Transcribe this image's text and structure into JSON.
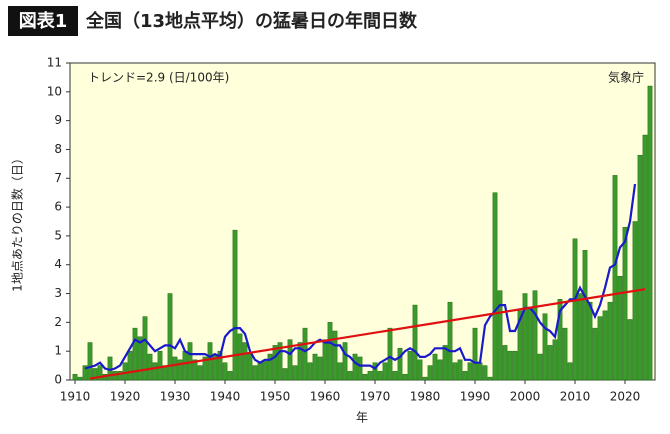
{
  "chart_data": {
    "type": "bar",
    "badge": "図表1",
    "title": "全国（13地点平均）の猛暑日の年間日数",
    "ylabel": "1地点あたりの日数（日）",
    "xlabel": "年",
    "annotations": [
      "トレンド=2.9 (日/100年)",
      "気象庁"
    ],
    "x": [
      1910,
      1911,
      1912,
      1913,
      1914,
      1915,
      1916,
      1917,
      1918,
      1919,
      1920,
      1921,
      1922,
      1923,
      1924,
      1925,
      1926,
      1927,
      1928,
      1929,
      1930,
      1931,
      1932,
      1933,
      1934,
      1935,
      1936,
      1937,
      1938,
      1939,
      1940,
      1941,
      1942,
      1943,
      1944,
      1945,
      1946,
      1947,
      1948,
      1949,
      1950,
      1951,
      1952,
      1953,
      1954,
      1955,
      1956,
      1957,
      1958,
      1959,
      1960,
      1961,
      1962,
      1963,
      1964,
      1965,
      1966,
      1967,
      1968,
      1969,
      1970,
      1971,
      1972,
      1973,
      1974,
      1975,
      1976,
      1977,
      1978,
      1979,
      1980,
      1981,
      1982,
      1983,
      1984,
      1985,
      1986,
      1987,
      1988,
      1989,
      1990,
      1991,
      1992,
      1993,
      1994,
      1995,
      1996,
      1997,
      1998,
      1999,
      2000,
      2001,
      2002,
      2003,
      2004,
      2005,
      2006,
      2007,
      2008,
      2009,
      2010,
      2011,
      2012,
      2013,
      2014,
      2015,
      2016,
      2017,
      2018,
      2019,
      2020,
      2021,
      2022,
      2023,
      2024,
      2025
    ],
    "values": [
      0.2,
      0.1,
      0.5,
      1.3,
      0.4,
      0.5,
      0.2,
      0.8,
      0.3,
      0.3,
      0.6,
      1.0,
      1.8,
      1.5,
      2.2,
      0.9,
      0.6,
      1.0,
      0.5,
      3.0,
      0.8,
      0.7,
      1.0,
      1.3,
      0.7,
      0.5,
      0.8,
      1.3,
      0.9,
      1.0,
      0.6,
      0.3,
      5.2,
      1.6,
      1.3,
      0.9,
      0.5,
      0.6,
      0.7,
      0.9,
      1.2,
      1.3,
      0.4,
      1.4,
      0.5,
      1.3,
      1.8,
      0.6,
      0.9,
      0.8,
      1.4,
      2.0,
      1.7,
      0.6,
      1.3,
      0.3,
      0.9,
      0.8,
      0.2,
      0.3,
      0.6,
      0.3,
      0.6,
      1.8,
      0.3,
      1.1,
      0.2,
      1.0,
      2.6,
      0.7,
      0.1,
      0.5,
      0.9,
      0.7,
      1.2,
      2.7,
      0.6,
      0.7,
      0.3,
      0.6,
      1.8,
      0.6,
      0.5,
      0.1,
      6.5,
      3.1,
      1.2,
      1.0,
      1.0,
      2.4,
      3.0,
      2.5,
      3.1,
      0.9,
      2.3,
      1.2,
      1.4,
      2.8,
      1.8,
      0.6,
      4.9,
      3.0,
      4.5,
      2.7,
      1.8,
      2.2,
      2.4,
      2.7,
      7.1,
      3.6,
      5.3,
      2.1,
      5.5,
      7.8,
      8.5,
      10.2
    ],
    "moving_average": [
      null,
      null,
      0.4,
      0.45,
      0.5,
      0.6,
      0.4,
      0.35,
      0.4,
      0.5,
      0.8,
      1.1,
      1.4,
      1.3,
      1.4,
      1.2,
      1.0,
      1.1,
      1.2,
      1.2,
      1.1,
      1.4,
      1.0,
      0.9,
      0.9,
      0.9,
      0.9,
      0.8,
      0.9,
      0.8,
      1.5,
      1.7,
      1.8,
      1.8,
      1.6,
      1.0,
      0.7,
      0.6,
      0.7,
      0.7,
      0.8,
      1.0,
      1.0,
      0.9,
      1.1,
      1.1,
      1.0,
      1.1,
      1.3,
      1.4,
      1.3,
      1.3,
      1.2,
      1.2,
      0.9,
      0.8,
      0.6,
      0.5,
      0.5,
      0.5,
      0.4,
      0.6,
      0.7,
      0.8,
      0.7,
      0.8,
      1.0,
      1.1,
      1.0,
      0.8,
      0.8,
      0.9,
      1.1,
      1.1,
      1.1,
      1.0,
      1.0,
      1.1,
      0.7,
      0.7,
      0.6,
      0.6,
      1.9,
      2.2,
      2.4,
      2.6,
      2.6,
      1.7,
      1.7,
      2.1,
      2.5,
      2.5,
      2.3,
      2.0,
      1.8,
      1.7,
      1.5,
      2.4,
      2.6,
      2.8,
      2.8,
      3.2,
      2.9,
      2.6,
      2.2,
      2.6,
      3.2,
      3.9,
      4.0,
      4.6,
      4.8,
      5.5,
      6.8,
      null,
      null,
      null
    ],
    "trend": {
      "x": [
        1913,
        2024
      ],
      "values": [
        0.05,
        3.15
      ]
    },
    "bar_color": "#3c9a2c",
    "ma_color": "#1a1acc",
    "trend_color": "#e01010",
    "xlim": [
      1909,
      2026
    ],
    "ylim": [
      0,
      11
    ],
    "xticks": [
      1910,
      1920,
      1930,
      1940,
      1950,
      1960,
      1970,
      1980,
      1990,
      2000,
      2010,
      2020
    ],
    "yticks": [
      0,
      1,
      2,
      3,
      4,
      5,
      6,
      7,
      8,
      9,
      10,
      11
    ]
  }
}
